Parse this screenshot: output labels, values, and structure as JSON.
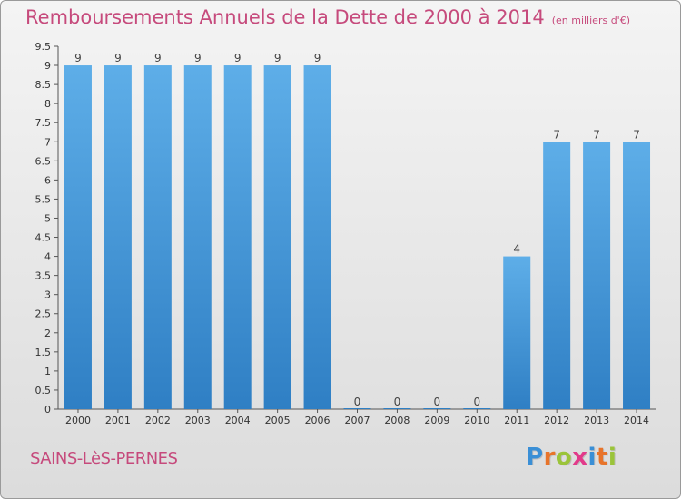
{
  "header": {
    "title": "Remboursements Annuels de la Dette de 2000 à 2014",
    "unit": "(en milliers d'€)"
  },
  "footer": {
    "commune": "SAINS-LèS-PERNES",
    "brand_letters": [
      "P",
      "r",
      "o",
      "x",
      "i",
      "t",
      "i"
    ],
    "brand_colors": [
      "#3a8fd6",
      "#e8742a",
      "#9bc43a",
      "#e23a8a",
      "#3a8fd6",
      "#e8742a",
      "#9bc43a"
    ]
  },
  "colors": {
    "bar_light": "#5eaee8",
    "bar_dark": "#2f7fc4",
    "title": "#c64a7c",
    "axis": "#555555"
  },
  "chart_data": {
    "type": "bar",
    "categories": [
      "2000",
      "2001",
      "2002",
      "2003",
      "2004",
      "2005",
      "2006",
      "2007",
      "2008",
      "2009",
      "2010",
      "2011",
      "2012",
      "2013",
      "2014"
    ],
    "values": [
      9,
      9,
      9,
      9,
      9,
      9,
      9,
      0,
      0,
      0,
      0,
      4,
      7,
      7,
      7
    ],
    "ylim": [
      0,
      9.5
    ],
    "yticks": [
      "0",
      "0.5",
      "1",
      "1.5",
      "2",
      "2.5",
      "3",
      "3.5",
      "4",
      "4.5",
      "5",
      "5.5",
      "6",
      "6.5",
      "7",
      "7.5",
      "8",
      "8.5",
      "9",
      "9.5"
    ],
    "grid": false,
    "legend": "none"
  }
}
